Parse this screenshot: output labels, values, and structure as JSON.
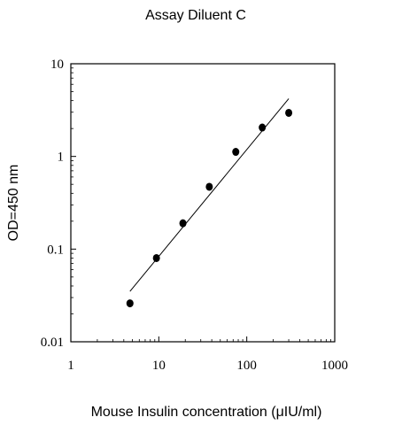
{
  "chart_data": {
    "type": "scatter",
    "title": "Assay Diluent C",
    "xlabel": "Mouse Insulin concentration (μIU/ml)",
    "ylabel": "OD=450 nm",
    "xscale": "log",
    "yscale": "log",
    "xlim": [
      1,
      1000
    ],
    "ylim": [
      0.01,
      10
    ],
    "xticks": [
      "1",
      "10",
      "100",
      "1000"
    ],
    "yticks": [
      "0.01",
      "0.1",
      "1",
      "10"
    ],
    "grid": false,
    "legend": "none",
    "series": [
      {
        "points": [
          {
            "x": 4.7,
            "y": 0.026
          },
          {
            "x": 9.4,
            "y": 0.08
          },
          {
            "x": 18.8,
            "y": 0.19
          },
          {
            "x": 37.5,
            "y": 0.47
          },
          {
            "x": 75,
            "y": 1.12
          },
          {
            "x": 150,
            "y": 2.05
          },
          {
            "x": 300,
            "y": 2.95
          }
        ]
      }
    ],
    "fit_line": {
      "x": [
        4.7,
        300
      ],
      "y": [
        0.035,
        4.2
      ]
    },
    "colors": {
      "points": "#000000",
      "line": "#000000",
      "axes": "#000000"
    }
  }
}
